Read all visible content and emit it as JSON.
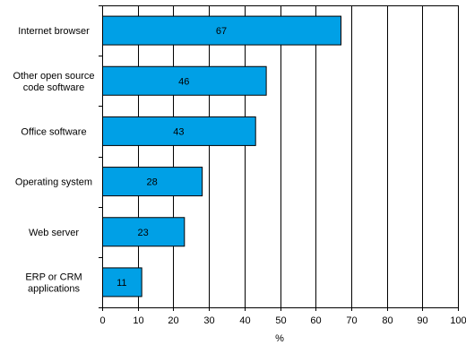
{
  "chart_data": {
    "type": "bar",
    "orientation": "horizontal",
    "categories": [
      [
        "Internet browser"
      ],
      [
        "Other open source",
        "code software"
      ],
      [
        "Office software"
      ],
      [
        "Operating system"
      ],
      [
        "Web server"
      ],
      [
        "ERP or CRM",
        "applications"
      ]
    ],
    "values": [
      67,
      46,
      43,
      28,
      23,
      11
    ],
    "data_labels": [
      "67",
      "46",
      "43",
      "28",
      "23",
      "11"
    ],
    "xlabel": "%",
    "xlim": [
      0,
      100
    ],
    "xticks": [
      0,
      10,
      20,
      30,
      40,
      50,
      60,
      70,
      80,
      90,
      100
    ],
    "grid": "vertical",
    "legend": "none",
    "colors": {
      "bar_fill": "#00a0e6",
      "bar_stroke": "#000000",
      "grid": "#000000",
      "background": "#ffffff"
    }
  }
}
